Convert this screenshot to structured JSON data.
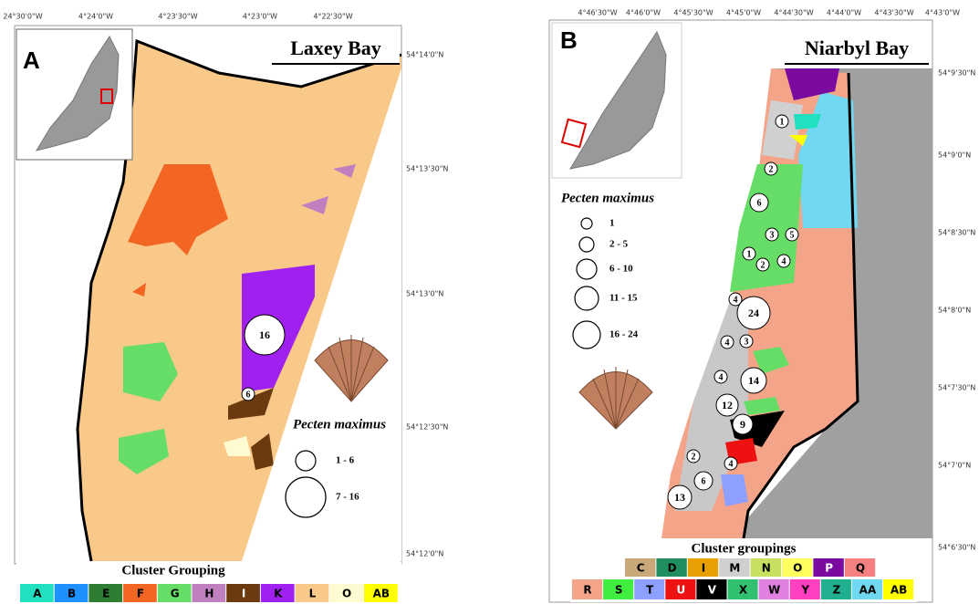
{
  "panels": [
    {
      "letter": "A",
      "title": "Laxey Bay",
      "top_coords": [
        "24°30'0\"W",
        "4°24'0\"W",
        "4°23'30\"W",
        "4°23'0\"W",
        "4°22'30\"W"
      ],
      "right_coords": [
        "54°14'0\"N",
        "54°13'30\"N",
        "54°13'0\"N",
        "54°12'30\"N",
        "54°12'0\"N"
      ],
      "legend_title": "Pecten maximus",
      "legend_items": [
        "1 - 6",
        "7 - 16"
      ],
      "abundance_labels": [
        "16",
        "6"
      ],
      "cluster_title": "Cluster Grouping",
      "clusters": [
        [
          {
            "code": "A",
            "color": "#20e0c0"
          },
          {
            "code": "B",
            "color": "#1e90ff"
          },
          {
            "code": "E",
            "color": "#2e7d32"
          },
          {
            "code": "F",
            "color": "#f26522"
          },
          {
            "code": "G",
            "color": "#66dd66"
          },
          {
            "code": "H",
            "color": "#c080c0"
          },
          {
            "code": "I",
            "color": "#6b3a0f"
          },
          {
            "code": "K",
            "color": "#a020f0"
          },
          {
            "code": "L",
            "color": "#f9c98a"
          },
          {
            "code": "O",
            "color": "#fffbd0"
          },
          {
            "code": "AB",
            "color": "#ffff00"
          }
        ]
      ]
    },
    {
      "letter": "B",
      "title": "Niarbyl Bay",
      "top_coords": [
        "4°46'30\"W",
        "4°46'0\"W",
        "4°45'30\"W",
        "4°45'0\"W",
        "4°44'30\"W",
        "4°44'0\"W",
        "4°43'30\"W",
        "4°43'0\"W"
      ],
      "right_coords": [
        "54°9'30\"N",
        "54°9'0\"N",
        "54°8'30\"N",
        "54°8'0\"N",
        "54°7'30\"N",
        "54°7'0\"N",
        "54°6'30\"N"
      ],
      "legend_title": "Pecten maximus",
      "legend_items": [
        "1",
        "2 - 5",
        "6 - 10",
        "11 - 15",
        "16 - 24"
      ],
      "abundance_labels": [
        "1",
        "2",
        "6",
        "3",
        "5",
        "1",
        "2",
        "4",
        "4",
        "24",
        "4",
        "3",
        "4",
        "14",
        "12",
        "9",
        "2",
        "4",
        "6",
        "13"
      ],
      "cluster_title": "Cluster groupings",
      "clusters": [
        [
          {
            "code": "C",
            "color": "#c8a878"
          },
          {
            "code": "D",
            "color": "#1f8f5f"
          },
          {
            "code": "I",
            "color": "#e8a000"
          },
          {
            "code": "M",
            "color": "#d0d0d0"
          },
          {
            "code": "N",
            "color": "#c8e060"
          },
          {
            "code": "O",
            "color": "#ffff60"
          },
          {
            "code": "P",
            "color": "#7a0aa0"
          },
          {
            "code": "Q",
            "color": "#f48080"
          }
        ],
        [
          {
            "code": "R",
            "color": "#f4a488"
          },
          {
            "code": "S",
            "color": "#40ee40"
          },
          {
            "code": "T",
            "color": "#8da0ff"
          },
          {
            "code": "U",
            "color": "#ee1111"
          },
          {
            "code": "V",
            "color": "#000000"
          },
          {
            "code": "X",
            "color": "#30c070"
          },
          {
            "code": "W",
            "color": "#e080e0"
          },
          {
            "code": "Y",
            "color": "#ff40c0"
          },
          {
            "code": "Z",
            "color": "#20b090"
          },
          {
            "code": "AA",
            "color": "#70d8f0"
          },
          {
            "code": "AB",
            "color": "#ffff00"
          }
        ]
      ]
    }
  ]
}
